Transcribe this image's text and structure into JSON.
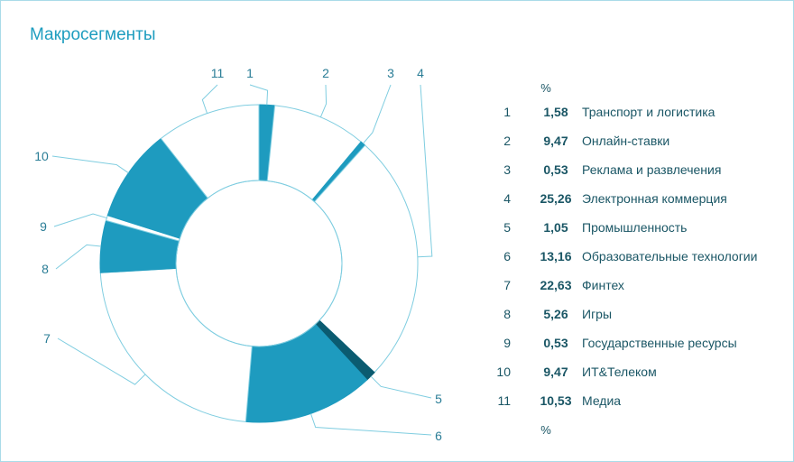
{
  "title": "Макросегменты",
  "colors": {
    "accent": "#1e9bbf",
    "accent_dark": "#0b5b70",
    "outline": "#7fcde0",
    "text": "#1a5665",
    "callout": "#2a7d96"
  },
  "legend": {
    "header": "%",
    "footer": "%",
    "rows": [
      {
        "num": "1",
        "value": "1,58",
        "label": "Транспорт и логистика"
      },
      {
        "num": "2",
        "value": "9,47",
        "label": "Онлайн-ставки"
      },
      {
        "num": "3",
        "value": "0,53",
        "label": "Реклама и развлечения"
      },
      {
        "num": "4",
        "value": "25,26",
        "label": "Электронная коммерция"
      },
      {
        "num": "5",
        "value": "1,05",
        "label": "Промышленность"
      },
      {
        "num": "6",
        "value": "13,16",
        "label": "Образовательные технологии"
      },
      {
        "num": "7",
        "value": "22,63",
        "label": "Финтех"
      },
      {
        "num": "8",
        "value": "5,26",
        "label": "Игры"
      },
      {
        "num": "9",
        "value": "0,53",
        "label": "Государственные ресурсы"
      },
      {
        "num": "10",
        "value": "9,47",
        "label": "ИТ&Телеком"
      },
      {
        "num": "11",
        "value": "10,53",
        "label": "Медиа"
      }
    ]
  },
  "chart_data": {
    "type": "pie",
    "title": "Макросегменты",
    "donut": true,
    "unit": "%",
    "slices": [
      {
        "label": "1",
        "value": 1.58,
        "fill": "accent"
      },
      {
        "label": "2",
        "value": 9.47,
        "fill": "none"
      },
      {
        "label": "3",
        "value": 0.53,
        "fill": "accent"
      },
      {
        "label": "4",
        "value": 25.26,
        "fill": "none"
      },
      {
        "label": "5",
        "value": 1.05,
        "fill": "accent_dark"
      },
      {
        "label": "6",
        "value": 13.16,
        "fill": "accent"
      },
      {
        "label": "7",
        "value": 22.63,
        "fill": "none"
      },
      {
        "label": "8",
        "value": 5.26,
        "fill": "accent"
      },
      {
        "label": "9",
        "value": 0.53,
        "fill": "none"
      },
      {
        "label": "10",
        "value": 9.47,
        "fill": "accent"
      },
      {
        "label": "11",
        "value": 10.53,
        "fill": "none"
      }
    ]
  }
}
